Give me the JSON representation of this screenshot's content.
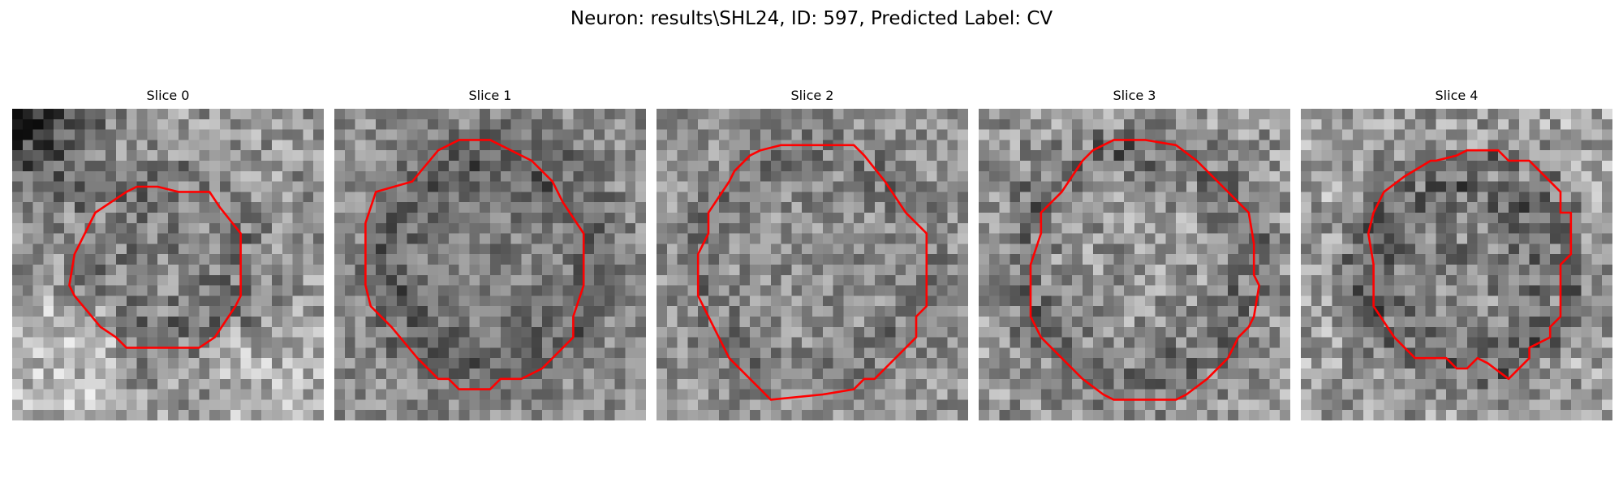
{
  "figure": {
    "title": "Neuron: results\\SHL24, ID: 597, Predicted Label: CV"
  },
  "panels": [
    {
      "title": "Slice 0",
      "background_tone": "light-with-dark-corner",
      "contour_color": "#ff0000"
    },
    {
      "title": "Slice 1",
      "background_tone": "medium",
      "contour_color": "#ff0000"
    },
    {
      "title": "Slice 2",
      "background_tone": "medium",
      "contour_color": "#ff0000"
    },
    {
      "title": "Slice 3",
      "background_tone": "medium-light",
      "contour_color": "#ff0000"
    },
    {
      "title": "Slice 4",
      "background_tone": "light-with-dark-ring",
      "contour_color": "#ff0000"
    }
  ],
  "colors": {
    "background": "#ffffff",
    "contour": "#ff0000",
    "colormap": "grayscale"
  }
}
